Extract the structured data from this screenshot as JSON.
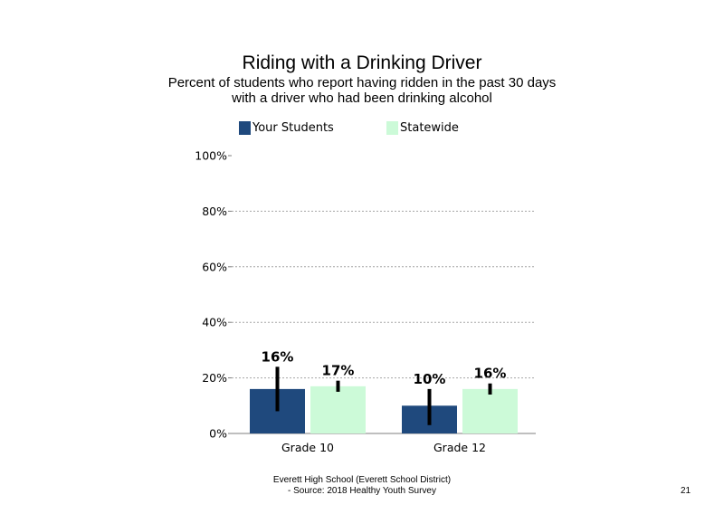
{
  "chart_data": {
    "type": "bar",
    "title": "Riding with a Drinking Driver",
    "subtitle_lines": [
      "Percent of students who report having ridden in the past 30 days",
      "with a driver who had been drinking alcohol"
    ],
    "categories": [
      "Grade 10",
      "Grade 12"
    ],
    "series": [
      {
        "name": "Your Students",
        "color": "#1f497d",
        "values": [
          16,
          10
        ],
        "labels": [
          "16%",
          "10%"
        ],
        "error_low": [
          8,
          3
        ],
        "error_high": [
          24,
          16
        ]
      },
      {
        "name": "Statewide",
        "color": "#ccfad8",
        "values": [
          17,
          16
        ],
        "labels": [
          "17%",
          "16%"
        ],
        "error_low": [
          15,
          14
        ],
        "error_high": [
          19,
          18
        ]
      }
    ],
    "yticks": [
      0,
      20,
      40,
      60,
      80,
      100
    ],
    "ytick_labels": [
      "0%",
      "20%",
      "40%",
      "60%",
      "80%",
      "100%"
    ],
    "ylim": [
      0,
      100
    ],
    "grid": true,
    "legend_position": "top"
  },
  "footer": {
    "line1": "Everett High School (Everett School District)",
    "line2": "- Source: 2018 Healthy Youth Survey"
  },
  "page_number": "21"
}
